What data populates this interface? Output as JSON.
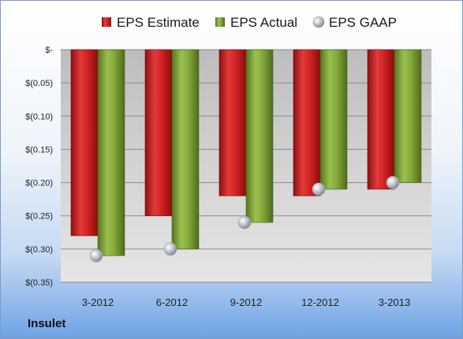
{
  "company": "Insulet",
  "chart_data": {
    "type": "bar",
    "categories": [
      "3-2012",
      "6-2012",
      "9-2012",
      "12-2012",
      "3-2013"
    ],
    "series": [
      {
        "name": "EPS Estimate",
        "type": "bar",
        "color": "#cc1f1f",
        "values": [
          -0.28,
          -0.25,
          -0.22,
          -0.22,
          -0.21
        ]
      },
      {
        "name": "EPS Actual",
        "type": "bar",
        "color": "#7a9e35",
        "values": [
          -0.31,
          -0.3,
          -0.26,
          -0.21,
          -0.2
        ]
      },
      {
        "name": "EPS GAAP",
        "type": "scatter",
        "color": "#b9bcc2",
        "values": [
          -0.31,
          -0.3,
          -0.26,
          -0.21,
          -0.2
        ]
      }
    ],
    "yticks": [
      0,
      -0.05,
      -0.1,
      -0.15,
      -0.2,
      -0.25,
      -0.3,
      -0.35
    ],
    "ytick_labels": [
      "$-",
      "$(0.05)",
      "$(0.10)",
      "$(0.15)",
      "$(0.20)",
      "$(0.25)",
      "$(0.30)",
      "$(0.35)"
    ],
    "ylim": [
      -0.35,
      0
    ],
    "grid": true,
    "legend": "top"
  }
}
